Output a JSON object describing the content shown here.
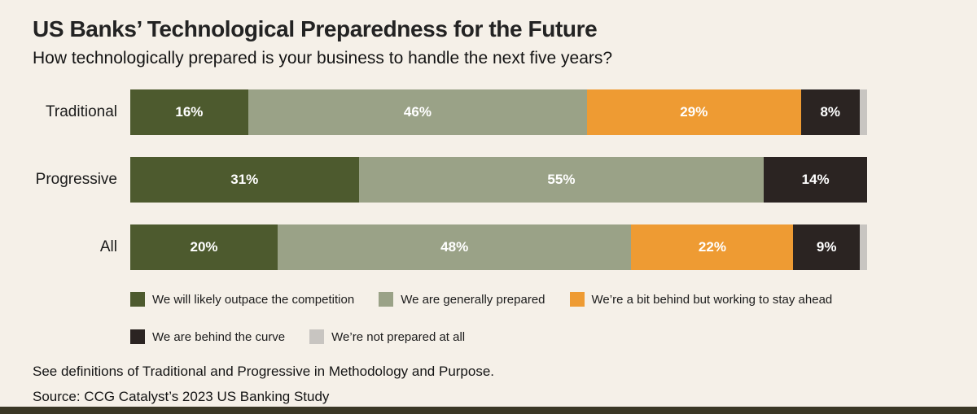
{
  "title": "US Banks’ Technological Preparedness for the Future",
  "subtitle": "How technologically prepared is your business to handle the next five years?",
  "colors": {
    "background": "#f5f0e8",
    "bottom_strip": "#3a3726",
    "label_text": "#ffffff"
  },
  "chart_data": {
    "type": "bar",
    "stacked": true,
    "orientation": "horizontal",
    "value_suffix": "%",
    "label_threshold": 5,
    "axis_range": [
      0,
      100
    ],
    "grid": false,
    "legend_position": "bottom",
    "categories": [
      "Traditional",
      "Progressive",
      "All"
    ],
    "series": [
      {
        "name": "We will likely outpace the competition",
        "color": "#4d5a2e",
        "values": [
          16,
          31,
          20
        ]
      },
      {
        "name": "We are generally prepared",
        "color": "#9aa287",
        "values": [
          46,
          55,
          48
        ]
      },
      {
        "name": "We’re a bit behind but working to stay ahead",
        "color": "#ee9b33",
        "values": [
          29,
          0,
          22
        ]
      },
      {
        "name": "We are behind the curve",
        "color": "#2b2422",
        "values": [
          8,
          14,
          9
        ]
      },
      {
        "name": "We’re not prepared at all",
        "color": "#c8c5c1",
        "values": [
          1,
          0,
          1
        ]
      }
    ]
  },
  "footer": {
    "note": "See definitions of Traditional and Progressive in Methodology and Purpose.",
    "source": "Source: CCG Catalyst’s 2023 US Banking Study"
  }
}
